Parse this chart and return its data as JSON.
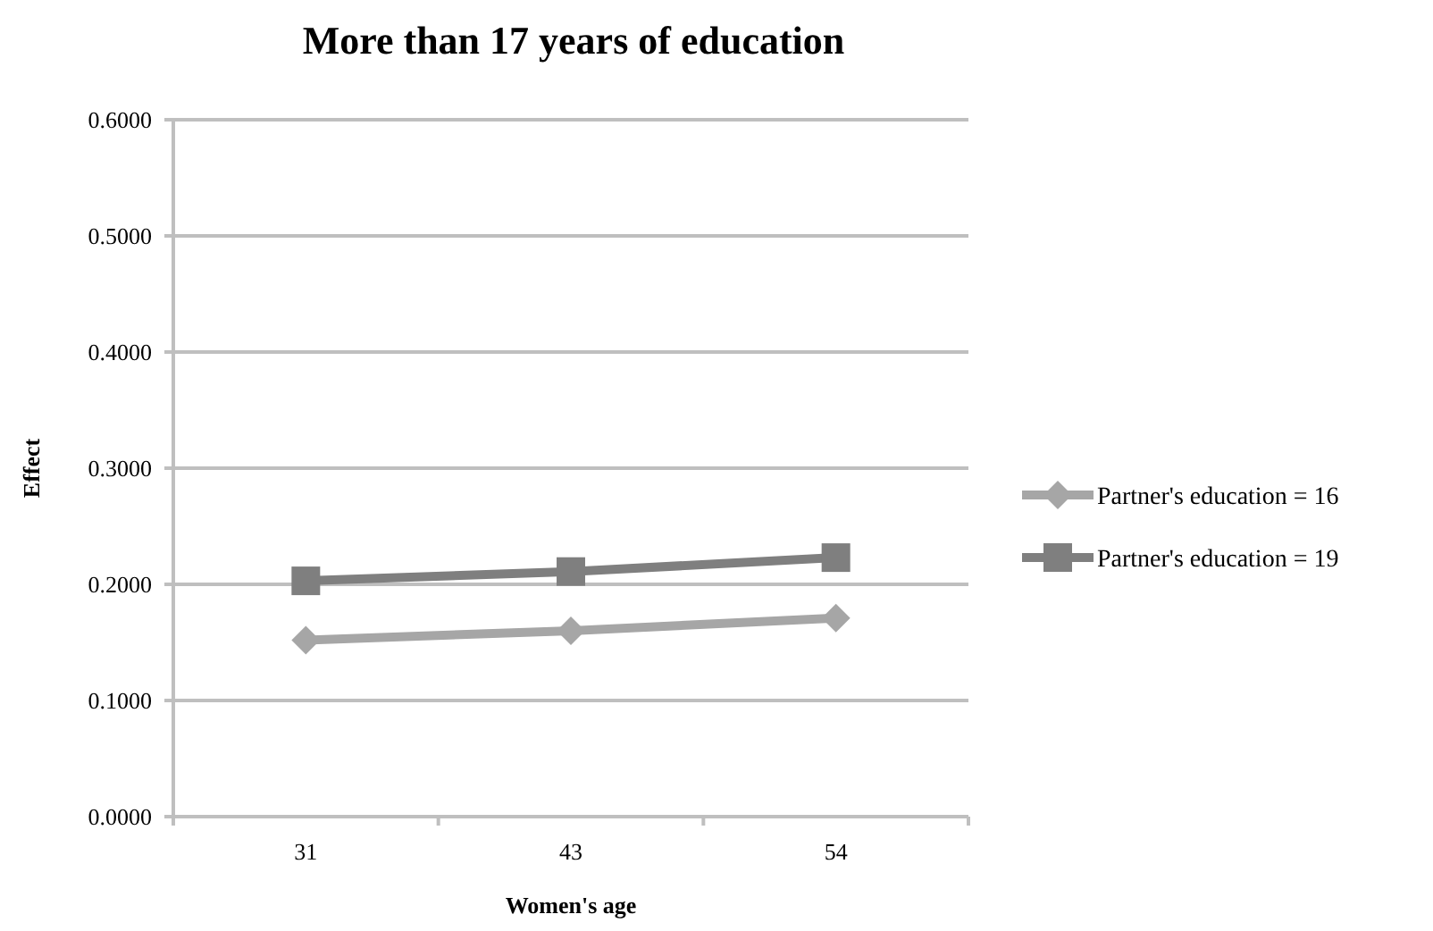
{
  "chart_data": {
    "type": "line",
    "title": "More than 17 years of education",
    "xlabel": "Women's age",
    "ylabel": "Effect",
    "categories": [
      "31",
      "43",
      "54"
    ],
    "series": [
      {
        "name": "Partner's education = 16",
        "color": "#a6a6a6",
        "marker": "diamond",
        "values": [
          0.152,
          0.16,
          0.171
        ]
      },
      {
        "name": "Partner's education = 19",
        "color": "#7f7f7f",
        "marker": "square",
        "values": [
          0.203,
          0.211,
          0.223
        ]
      }
    ],
    "ylim": [
      0,
      0.6
    ],
    "yticks": [
      {
        "value": 0,
        "label": "0.0000"
      },
      {
        "value": 0.1,
        "label": "0.1000"
      },
      {
        "value": 0.2,
        "label": "0.2000"
      },
      {
        "value": 0.3,
        "label": "0.3000"
      },
      {
        "value": 0.4,
        "label": "0.4000"
      },
      {
        "value": 0.5,
        "label": "0.5000"
      },
      {
        "value": 0.6,
        "label": "0.6000"
      }
    ],
    "grid": "y",
    "legend": "right",
    "line_style": "solid"
  }
}
